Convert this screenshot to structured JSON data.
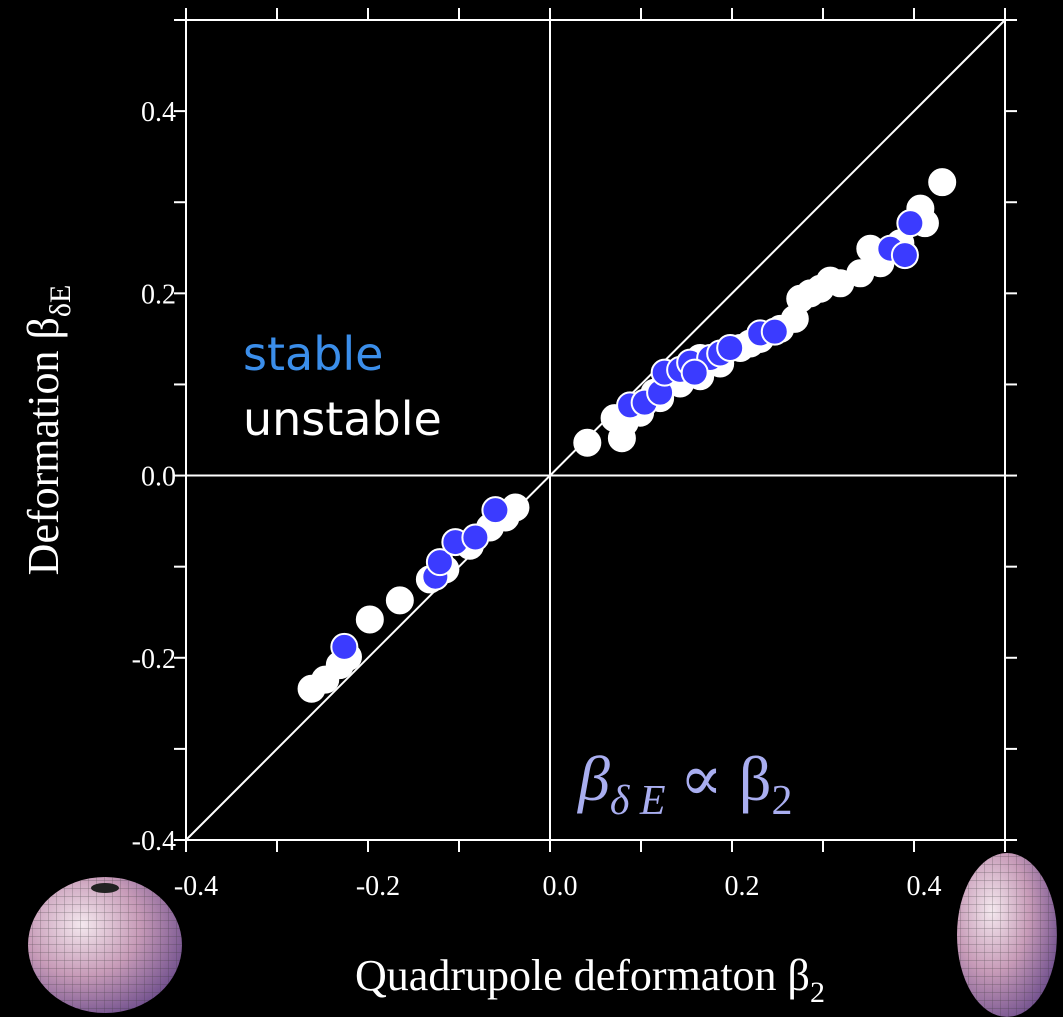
{
  "chart_data": {
    "type": "scatter",
    "xlabel": {
      "text": "Quadrupole deformaton β",
      "sub": "2"
    },
    "ylabel": {
      "text": "Deformation β",
      "sub": "δE"
    },
    "annotation": {
      "parts": [
        "β",
        "δ E",
        "∝ β",
        "2"
      ]
    },
    "xlim": [
      -0.4,
      0.5
    ],
    "ylim": [
      -0.4,
      0.5
    ],
    "xticks": [
      {
        "value": -0.4,
        "label": "-0.4"
      },
      {
        "value": -0.2,
        "label": "-0.2"
      },
      {
        "value": 0,
        "label": "0.0"
      },
      {
        "value": 0.2,
        "label": "0.2"
      },
      {
        "value": 0.4,
        "label": "0.4"
      }
    ],
    "yticks": [
      {
        "value": -0.4,
        "label": "-0.4"
      },
      {
        "value": -0.2,
        "label": "-0.2"
      },
      {
        "value": 0,
        "label": "0.0"
      },
      {
        "value": 0.2,
        "label": "0.2"
      },
      {
        "value": 0.4,
        "label": "0.4"
      }
    ],
    "xminorticks": [
      -0.3,
      -0.1,
      0.1,
      0.3,
      0.5
    ],
    "yminorticks": [
      -0.3,
      -0.1,
      0.1,
      0.3,
      0.5
    ],
    "zero_lines": true,
    "series": [
      {
        "name": "stable",
        "color": "#3b3bff",
        "legend_color": "#3b8eea",
        "x": [
          -0.226,
          -0.126,
          -0.121,
          -0.104,
          -0.082,
          -0.06,
          0.088,
          0.104,
          0.121,
          0.126,
          0.143,
          0.154,
          0.176,
          0.187,
          0.198,
          0.231,
          0.247,
          0.374,
          0.39,
          0.396,
          0.159
        ],
        "y": [
          -0.188,
          -0.111,
          -0.095,
          -0.073,
          -0.068,
          -0.038,
          0.077,
          0.08,
          0.091,
          0.113,
          0.116,
          0.124,
          0.129,
          0.134,
          0.14,
          0.156,
          0.158,
          0.249,
          0.242,
          0.277,
          0.113
        ]
      },
      {
        "name": "unstable",
        "color": "#ffffff",
        "legend_color": "#ffffff",
        "x": [
          -0.262,
          -0.247,
          -0.231,
          -0.222,
          -0.198,
          -0.165,
          -0.132,
          -0.115,
          -0.088,
          -0.066,
          -0.049,
          -0.038,
          0.041,
          0.079,
          0.082,
          0.099,
          0.121,
          0.143,
          0.165,
          0.187,
          0.209,
          0.231,
          0.253,
          0.269,
          0.275,
          0.297,
          0.319,
          0.341,
          0.363,
          0.385,
          0.412,
          0.431,
          0.407,
          0.308,
          0.352,
          0.286,
          0.071,
          0.115,
          0.165,
          0.22
        ],
        "y": [
          -0.234,
          -0.224,
          -0.208,
          -0.199,
          -0.158,
          -0.137,
          -0.114,
          -0.103,
          -0.077,
          -0.057,
          -0.046,
          -0.035,
          0.036,
          0.041,
          0.058,
          0.069,
          0.085,
          0.101,
          0.109,
          0.123,
          0.14,
          0.15,
          0.161,
          0.172,
          0.194,
          0.205,
          0.211,
          0.222,
          0.233,
          0.255,
          0.277,
          0.322,
          0.293,
          0.214,
          0.249,
          0.2,
          0.063,
          0.091,
          0.129,
          0.145
        ]
      }
    ]
  }
}
